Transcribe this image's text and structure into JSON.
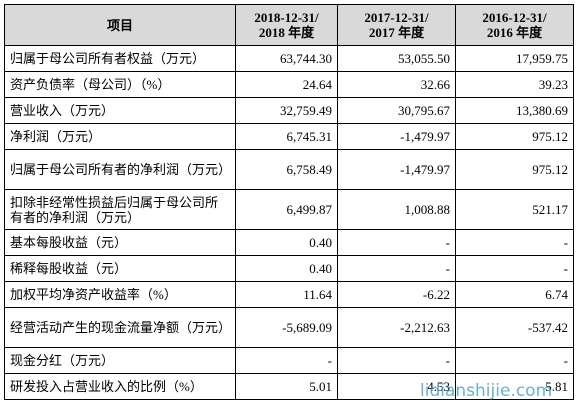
{
  "table": {
    "header": [
      [
        "项目"
      ],
      [
        "2018-12-31/",
        "2018 年度"
      ],
      [
        "2017-12-31/",
        "2017 年度"
      ],
      [
        "2016-12-31/",
        "2016 年度"
      ]
    ],
    "rows": [
      [
        "归属于母公司所有者权益（万元）",
        "63,744.30",
        "53,055.50",
        "17,959.75"
      ],
      [
        "资产负债率（母公司）（%）",
        "24.64",
        "32.66",
        "39.23"
      ],
      [
        "营业收入（万元）",
        "32,759.49",
        "30,795.67",
        "13,380.69"
      ],
      [
        "净利润（万元）",
        "6,745.31",
        "-1,479.97",
        "975.12"
      ],
      [
        "归属于母公司所有者的净利润（万元）",
        "6,758.49",
        "-1,479.97",
        "975.12"
      ],
      [
        "扣除非经常性损益后归属于母公司所有者的净利润（万元）",
        "6,499.87",
        "1,008.88",
        "521.17"
      ],
      [
        "基本每股收益（元）",
        "0.40",
        "-",
        "-"
      ],
      [
        "稀释每股收益（元）",
        "0.40",
        "-",
        "-"
      ],
      [
        "加权平均净资产收益率（%）",
        "11.64",
        "-6.22",
        "6.74"
      ],
      [
        "经营活动产生的现金流量净额（万元）",
        "-5,689.09",
        "-2,212.63",
        "-537.42"
      ],
      [
        "现金分红（万元）",
        "-",
        "-",
        "-"
      ],
      [
        "研发投入占营业收入的比例（%）",
        "5.01",
        "4.53",
        "5.81"
      ]
    ]
  },
  "watermark": "lidianshijie.com"
}
